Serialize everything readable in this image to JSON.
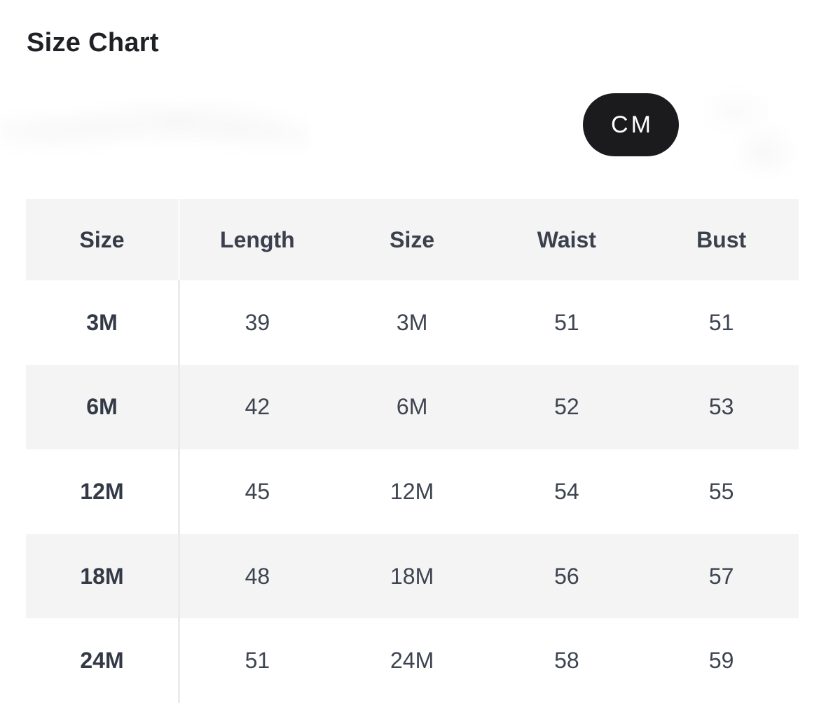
{
  "page": {
    "title": "Size Chart"
  },
  "unit_toggle": {
    "selected_unit": "CM"
  },
  "colors": {
    "pill_background": "#1b1b1e",
    "pill_text": "#ffffff",
    "header_row_background": "#f4f4f5",
    "alt_row_background": "#f4f4f5",
    "column_divider": "#ebebed",
    "title_text": "#1f2125",
    "cell_text": "#3d4450"
  },
  "table": {
    "columns": [
      "Size",
      "Length",
      "Size",
      "Waist",
      "Bust"
    ],
    "rows": [
      {
        "cells": [
          "3M",
          "39",
          "3M",
          "51",
          "51"
        ]
      },
      {
        "cells": [
          "6M",
          "42",
          "6M",
          "52",
          "53"
        ]
      },
      {
        "cells": [
          "12M",
          "45",
          "12M",
          "54",
          "55"
        ]
      },
      {
        "cells": [
          "18M",
          "48",
          "18M",
          "56",
          "57"
        ]
      },
      {
        "cells": [
          "24M",
          "51",
          "24M",
          "58",
          "59"
        ]
      }
    ]
  }
}
